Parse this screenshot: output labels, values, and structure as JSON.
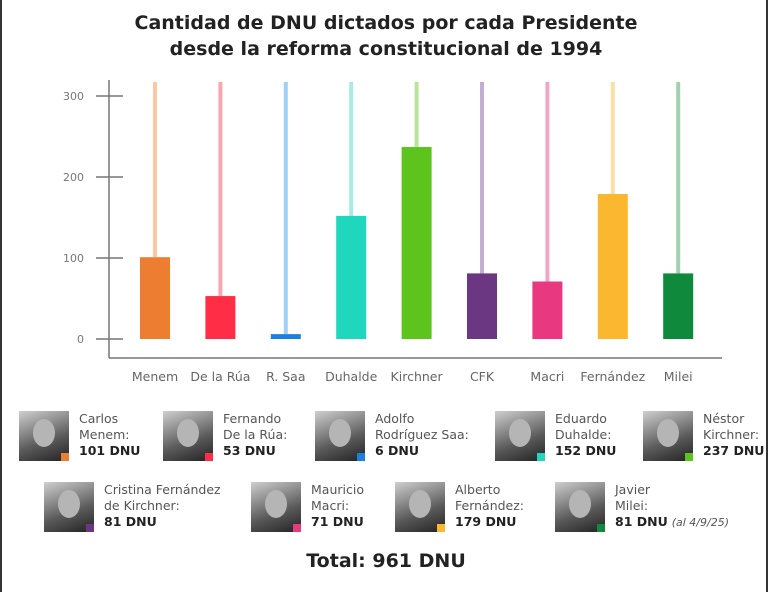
{
  "chart_data": {
    "type": "bar",
    "title": "Cantidad de DNU dictados por cada Presidente desde la reforma constitucional de 1994",
    "title_lines": [
      "Cantidad de DNU dictados por cada Presidente",
      "desde la reforma constitucional de 1994"
    ],
    "categories": [
      "Menem",
      "De la Rúa",
      "R. Saa",
      "Duhalde",
      "Kirchner",
      "CFK",
      "Macri",
      "Fernández",
      "Milei"
    ],
    "values": [
      101,
      53,
      6,
      152,
      237,
      81,
      71,
      179,
      81
    ],
    "colors": [
      "#ed7d31",
      "#ff2d46",
      "#1a7fe0",
      "#20d6bd",
      "#5cc41c",
      "#6b3682",
      "#e8387f",
      "#fbb72f",
      "#0f8a3c"
    ],
    "stem_colors": [
      "#f8c9a4",
      "#f7a7b0",
      "#9fd0f6",
      "#a6ece2",
      "#b7e59b",
      "#c2aed0",
      "#f2a6c6",
      "#fbe0a5",
      "#9fd2b0"
    ],
    "yticks": [
      0,
      100,
      200,
      300
    ],
    "ylim": [
      0,
      320
    ],
    "xlabel": "",
    "ylabel": "",
    "grid": false,
    "legend": "bottom"
  },
  "legend": [
    {
      "name_lines": [
        "Carlos",
        "Menem:"
      ],
      "value": "101 DNU",
      "note": ""
    },
    {
      "name_lines": [
        "Fernando",
        "De la Rúa:"
      ],
      "value": "53 DNU",
      "note": ""
    },
    {
      "name_lines": [
        "Adolfo",
        "Rodríguez Saa:"
      ],
      "value": "6 DNU",
      "note": ""
    },
    {
      "name_lines": [
        "Eduardo",
        "Duhalde:"
      ],
      "value": "152 DNU",
      "note": ""
    },
    {
      "name_lines": [
        "Néstor",
        "Kirchner:"
      ],
      "value": "237 DNU",
      "note": ""
    },
    {
      "name_lines": [
        "Cristina Fernández",
        "de Kirchner:"
      ],
      "value": "81 DNU",
      "note": ""
    },
    {
      "name_lines": [
        "Mauricio",
        "Macri:"
      ],
      "value": "71 DNU",
      "note": ""
    },
    {
      "name_lines": [
        "Alberto",
        "Fernández:"
      ],
      "value": "179 DNU",
      "note": ""
    },
    {
      "name_lines": [
        "Javier",
        "Milei:"
      ],
      "value": "81 DNU",
      "note": "(al 4/9/25)"
    }
  ],
  "total": "Total: 961 DNU"
}
